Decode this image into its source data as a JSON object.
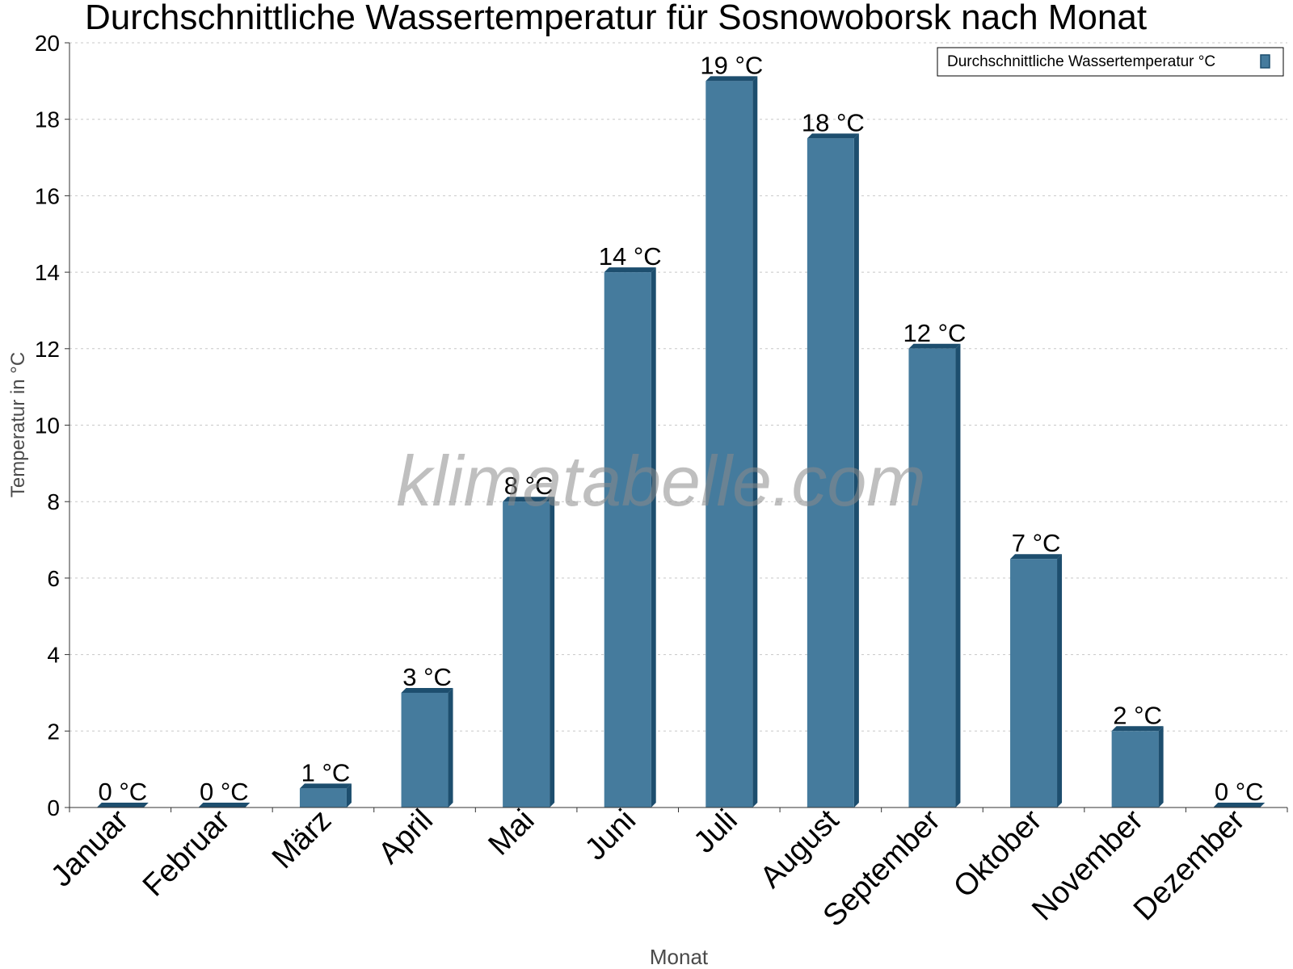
{
  "chart_data": {
    "type": "bar",
    "title": "Durchschnittliche Wassertemperatur für Sosnowoborsk nach Monat",
    "xlabel": "Monat",
    "ylabel": "Temperatur in °C",
    "ylim": [
      0,
      20
    ],
    "yticks": [
      "0",
      "2",
      "4",
      "6",
      "8",
      "10",
      "12",
      "14",
      "16",
      "18",
      "20"
    ],
    "grid": true,
    "legend_position": "top-right",
    "categories": [
      "Januar",
      "Februar",
      "März",
      "April",
      "Mai",
      "Juni",
      "Juli",
      "August",
      "September",
      "Oktober",
      "November",
      "Dezember"
    ],
    "series": [
      {
        "name": "Durchschnittliche Wassertemperatur °C",
        "values": [
          0,
          0,
          0.5,
          3,
          8,
          14,
          19,
          17.5,
          12,
          6.5,
          2,
          0
        ],
        "labels": [
          "0 °C",
          "0 °C",
          "1 °C",
          "3 °C",
          "8 °C",
          "14 °C",
          "19 °C",
          "18 °C",
          "12 °C",
          "7 °C",
          "2 °C",
          "0 °C"
        ],
        "color": "#457b9d",
        "shade_color": "#1d4e6e"
      }
    ],
    "watermark": "klimatabelle.com"
  }
}
